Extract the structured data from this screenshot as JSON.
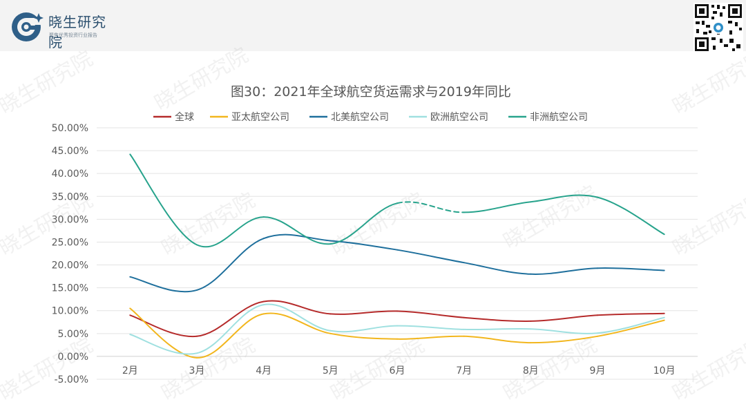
{
  "brand": {
    "name": "晓生研究院",
    "tagline": "聚焦优秀投资行业报告",
    "watermark": "晓生研究院"
  },
  "chart_data": {
    "type": "line",
    "title": "图30：2021年全球航空货运需求与2019年同比",
    "categories": [
      "2月",
      "3月",
      "4月",
      "5月",
      "6月",
      "7月",
      "8月",
      "9月",
      "10月"
    ],
    "y_ticks": [
      "-5.00%",
      "0.00%",
      "5.00%",
      "10.00%",
      "15.00%",
      "20.00%",
      "25.00%",
      "30.00%",
      "35.00%",
      "40.00%",
      "45.00%",
      "50.00%"
    ],
    "ylim": [
      -5,
      50
    ],
    "legend_position": "top",
    "series": [
      {
        "name": "全球",
        "color": "#b52a2a",
        "values": [
          9.0,
          4.4,
          12.0,
          9.3,
          9.9,
          8.5,
          7.7,
          9.0,
          9.4
        ]
      },
      {
        "name": "亚太航空公司",
        "color": "#f2b61d",
        "values": [
          10.5,
          -0.3,
          9.3,
          5.0,
          3.8,
          4.4,
          3.0,
          4.4,
          7.9
        ]
      },
      {
        "name": "北美航空公司",
        "color": "#1e6f9c",
        "values": [
          17.4,
          14.5,
          25.8,
          25.3,
          23.3,
          20.5,
          18.0,
          19.3,
          18.8
        ]
      },
      {
        "name": "欧洲航空公司",
        "color": "#9fe0e0",
        "values": [
          4.8,
          0.7,
          11.3,
          5.6,
          6.7,
          5.9,
          6.0,
          5.1,
          8.5
        ]
      },
      {
        "name": "非洲航空公司",
        "color": "#27a38c",
        "values": [
          44.2,
          24.4,
          30.5,
          24.6,
          33.5,
          31.5,
          33.8,
          34.8,
          26.7
        ],
        "dashed_segment": [
          "6月",
          "7月"
        ]
      }
    ]
  }
}
